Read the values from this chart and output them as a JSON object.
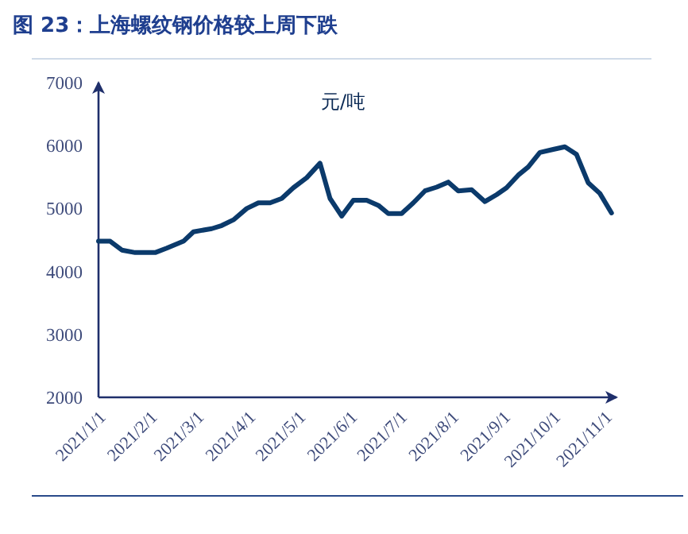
{
  "chart_data": {
    "type": "line",
    "title": "图 23：上海螺纹钢价格较上周下跌",
    "ylabel": "元/吨",
    "x": [
      "2021-01-01",
      "2021-01-08",
      "2021-01-15",
      "2021-01-23",
      "2021-02-04",
      "2021-02-11",
      "2021-02-21",
      "2021-02-27",
      "2021-03-10",
      "2021-03-16",
      "2021-03-23",
      "2021-03-31",
      "2021-04-07",
      "2021-04-14",
      "2021-04-21",
      "2021-04-28",
      "2021-05-06",
      "2021-05-14",
      "2021-05-20",
      "2021-05-27",
      "2021-06-03",
      "2021-06-11",
      "2021-06-18",
      "2021-06-24",
      "2021-07-02",
      "2021-07-09",
      "2021-07-16",
      "2021-07-23",
      "2021-07-30",
      "2021-08-05",
      "2021-08-13",
      "2021-08-21",
      "2021-08-28",
      "2021-09-03",
      "2021-09-10",
      "2021-09-16",
      "2021-09-23",
      "2021-10-01",
      "2021-10-08",
      "2021-10-15",
      "2021-10-22",
      "2021-10-29",
      "2021-11-05"
    ],
    "series": [
      {
        "color": "#0b3a6b",
        "values": [
          4480,
          4480,
          4340,
          4300,
          4300,
          4370,
          4480,
          4630,
          4680,
          4730,
          4820,
          5000,
          5090,
          5090,
          5160,
          5330,
          5490,
          5720,
          5160,
          4880,
          5130,
          5130,
          5050,
          4920,
          4920,
          5090,
          5280,
          5340,
          5420,
          5280,
          5300,
          5110,
          5220,
          5330,
          5530,
          5660,
          5890,
          5940,
          5980,
          5860,
          5410,
          5240,
          4930
        ]
      }
    ],
    "xlim": [
      "2021-01-01",
      "2021-11-08"
    ],
    "xticks": [
      {
        "value": "2021-01-01",
        "label": "2021/1/1"
      },
      {
        "value": "2021-02-01",
        "label": "2021/2/1"
      },
      {
        "value": "2021-03-01",
        "label": "2021/3/1"
      },
      {
        "value": "2021-04-01",
        "label": "2021/4/1"
      },
      {
        "value": "2021-05-01",
        "label": "2021/5/1"
      },
      {
        "value": "2021-06-01",
        "label": "2021/6/1"
      },
      {
        "value": "2021-07-01",
        "label": "2021/7/1"
      },
      {
        "value": "2021-08-01",
        "label": "2021/8/1"
      },
      {
        "value": "2021-09-01",
        "label": "2021/9/1"
      },
      {
        "value": "2021-10-01",
        "label": "2021/10/1"
      },
      {
        "value": "2021-11-01",
        "label": "2021/11/1"
      }
    ],
    "ylim": [
      2000,
      7000
    ],
    "yticks": [
      2000,
      3000,
      4000,
      5000,
      6000,
      7000
    ],
    "grid": false,
    "marker": "none",
    "line_style": "solid"
  }
}
